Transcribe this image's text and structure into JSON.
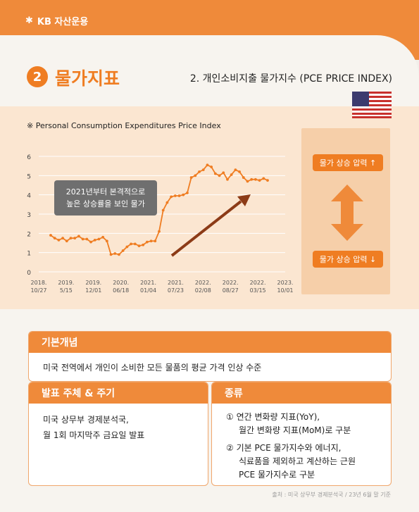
{
  "brand": {
    "name": "KB 자산운용"
  },
  "section": {
    "number": "2",
    "title": "물가지표",
    "subtitle": "2. 개인소비지출 물가지수 (PCE PRICE INDEX)"
  },
  "chart_data": {
    "type": "line",
    "title": "※ Personal Consumption Expenditures Price Index",
    "ylim": [
      0,
      6
    ],
    "yticks": [
      "0",
      "1",
      "2",
      "3",
      "4",
      "5",
      "6"
    ],
    "x_ticks": [
      [
        "2018.",
        "10/27"
      ],
      [
        "2019.",
        "5/15"
      ],
      [
        "2019.",
        "12/01"
      ],
      [
        "2020.",
        "06/18"
      ],
      [
        "2021.",
        "01/04"
      ],
      [
        "2021.",
        "07/23"
      ],
      [
        "2022.",
        "02/08"
      ],
      [
        "2022.",
        "08/27"
      ],
      [
        "2022.",
        "03/15"
      ],
      [
        "2023.",
        "10/01"
      ]
    ],
    "grid": true,
    "color": "#ef7d22",
    "values": [
      1.9,
      1.75,
      1.65,
      1.75,
      1.6,
      1.75,
      1.75,
      1.85,
      1.7,
      1.7,
      1.55,
      1.65,
      1.7,
      1.8,
      1.6,
      0.9,
      0.95,
      0.9,
      1.1,
      1.3,
      1.45,
      1.45,
      1.35,
      1.4,
      1.55,
      1.6,
      1.6,
      2.1,
      3.2,
      3.6,
      3.9,
      3.95,
      3.95,
      4.0,
      4.1,
      4.9,
      5.0,
      5.2,
      5.3,
      5.55,
      5.45,
      5.1,
      5.0,
      5.15,
      4.8,
      5.05,
      5.3,
      5.2,
      4.9,
      4.7,
      4.8,
      4.8,
      4.75,
      4.85,
      4.75
    ],
    "annotation": [
      "2021년부터 본격적으로",
      "높은 상승률을 보인 물가"
    ]
  },
  "side": {
    "up_label": "물가 상승 압력 ↑",
    "down_label": "물가 상승 압력 ↓"
  },
  "concept": {
    "heading": "기본개념",
    "text": "미국 전역에서 개인이 소비한 모든 물품의 평균 가격 인상 수준"
  },
  "release": {
    "heading": "발표 주체 & 주기",
    "line1": "미국 상무부 경제분석국,",
    "line2": "월 1회 마지막주 금요일 발표"
  },
  "types": {
    "heading": "종류",
    "item1_l1": "① 연간 변화량 지표(YoY),",
    "item1_l2": "월간 변화량 지표(MoM)로 구분",
    "item2_l1": "② 기본 PCE 물가지수와 에너지,",
    "item2_l2": "식료품을 제외하고 계산하는 근원",
    "item2_l3": "PCE 물가지수로 구분"
  },
  "footer": {
    "source": "출처 : 미국 상무부 경제분석국 / 23년 6월 말 기준"
  }
}
